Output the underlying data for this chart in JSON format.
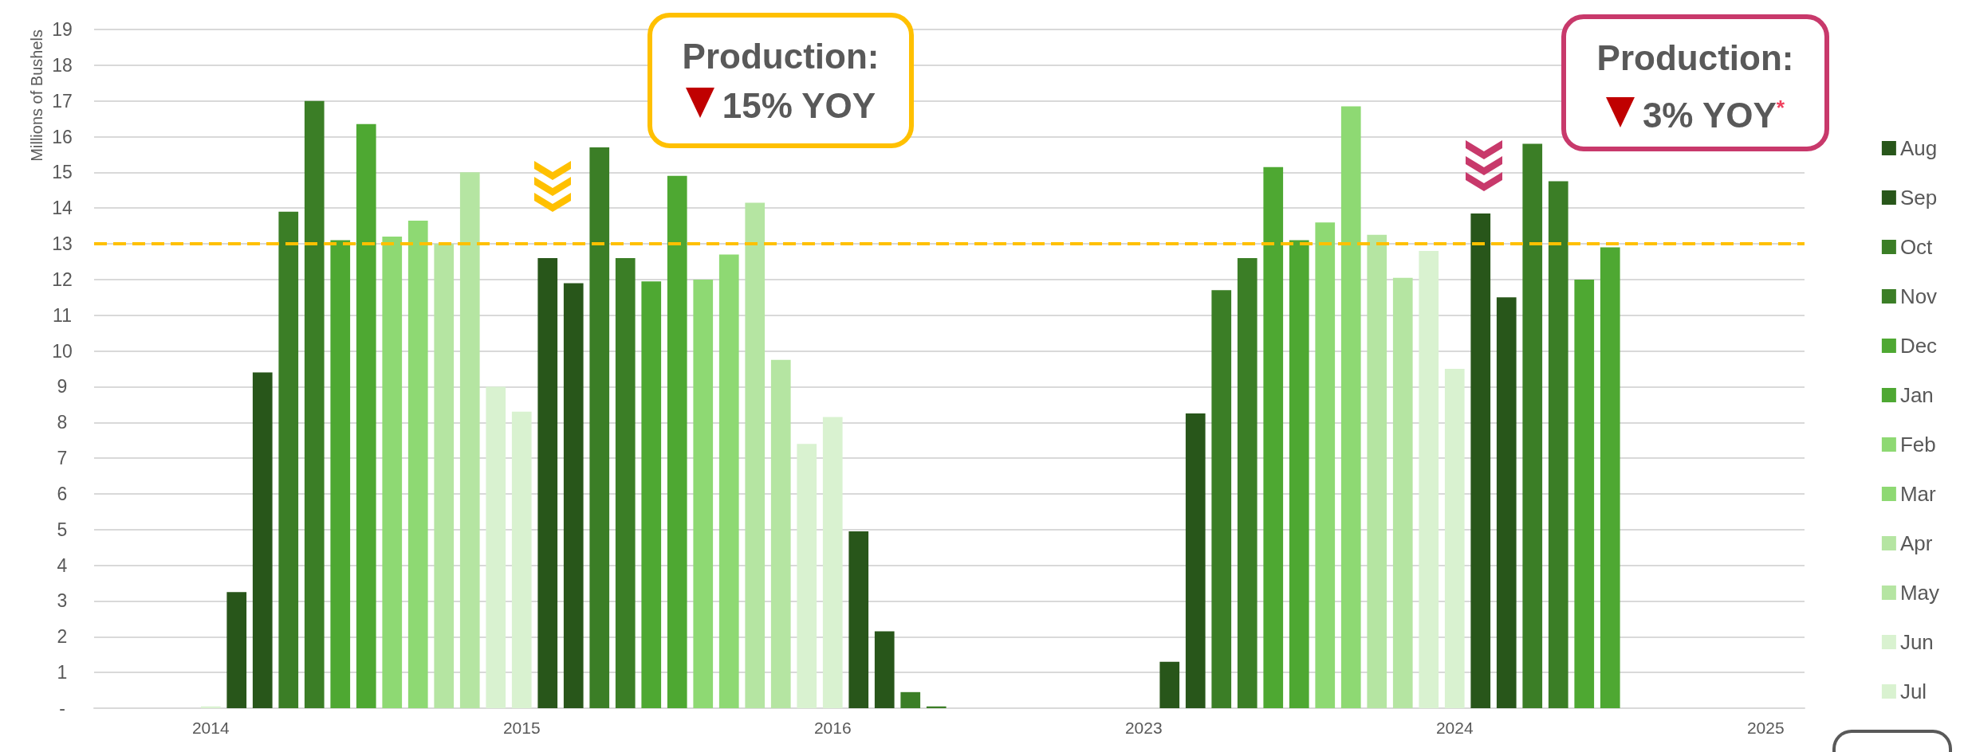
{
  "chart_data": {
    "type": "bar",
    "ylabel": "Millions of Bushels",
    "ylim": [
      0,
      19
    ],
    "yticks": [
      {
        "value": 0,
        "label": "-"
      },
      1,
      2,
      3,
      4,
      5,
      6,
      7,
      8,
      9,
      10,
      11,
      12,
      13,
      14,
      15,
      16,
      17,
      18,
      19
    ],
    "grid": "y",
    "legend": "right",
    "categories": [
      null,
      null,
      null,
      null,
      "2014",
      null,
      null,
      null,
      null,
      null,
      null,
      null,
      null,
      null,
      null,
      null,
      "2015",
      null,
      null,
      null,
      null,
      null,
      null,
      null,
      null,
      null,
      null,
      null,
      "2016",
      null,
      null,
      null,
      null,
      null,
      null,
      null,
      null,
      null,
      null,
      null,
      "2023",
      null,
      null,
      null,
      null,
      null,
      null,
      null,
      null,
      null,
      null,
      null,
      "2024",
      null,
      null,
      null,
      null,
      null,
      null,
      null,
      null,
      null,
      null,
      null,
      "2025",
      null
    ],
    "series": [
      {
        "name": "Aug",
        "color": "#28561a",
        "values": [
          null,
          null,
          null,
          null,
          null,
          3.25,
          null,
          null,
          null,
          null,
          null,
          null,
          null,
          null,
          null,
          null,
          null,
          12.6,
          null,
          null,
          null,
          null,
          null,
          null,
          null,
          null,
          null,
          null,
          null,
          4.95,
          null,
          null,
          null,
          null,
          null,
          null,
          null,
          null,
          null,
          null,
          null,
          1.3,
          null,
          null,
          null,
          null,
          null,
          null,
          null,
          null,
          null,
          null,
          null,
          13.85,
          null,
          null,
          null,
          null,
          null,
          null,
          null,
          null,
          null,
          null,
          null,
          null
        ]
      },
      {
        "name": "Sep",
        "color": "#28561a",
        "values": [
          null,
          null,
          null,
          null,
          null,
          null,
          9.4,
          null,
          null,
          null,
          null,
          null,
          null,
          null,
          null,
          null,
          null,
          null,
          11.9,
          null,
          null,
          null,
          null,
          null,
          null,
          null,
          null,
          null,
          null,
          null,
          2.15,
          null,
          null,
          null,
          null,
          null,
          null,
          null,
          null,
          null,
          null,
          null,
          8.25,
          null,
          null,
          null,
          null,
          null,
          null,
          null,
          null,
          null,
          null,
          null,
          11.5,
          null,
          null,
          null,
          null,
          null,
          null,
          null,
          null,
          null,
          null,
          null
        ]
      },
      {
        "name": "Oct",
        "color": "#3b7e26",
        "values": [
          null,
          null,
          null,
          null,
          null,
          null,
          null,
          13.9,
          null,
          null,
          null,
          null,
          null,
          null,
          null,
          null,
          null,
          null,
          null,
          15.7,
          null,
          null,
          null,
          null,
          null,
          null,
          null,
          null,
          null,
          null,
          null,
          0.45,
          null,
          null,
          null,
          null,
          null,
          null,
          null,
          null,
          null,
          null,
          null,
          11.7,
          null,
          null,
          null,
          null,
          null,
          null,
          null,
          null,
          null,
          null,
          null,
          15.8,
          null,
          null,
          null,
          null,
          null,
          null,
          null,
          null,
          null,
          null
        ]
      },
      {
        "name": "Nov",
        "color": "#3b7e26",
        "values": [
          null,
          null,
          null,
          null,
          null,
          null,
          null,
          null,
          17.0,
          null,
          null,
          null,
          null,
          null,
          null,
          null,
          null,
          null,
          null,
          null,
          12.6,
          null,
          null,
          null,
          null,
          null,
          null,
          null,
          null,
          null,
          null,
          null,
          0.05,
          null,
          null,
          null,
          null,
          null,
          null,
          null,
          null,
          null,
          null,
          null,
          12.6,
          null,
          null,
          null,
          null,
          null,
          null,
          null,
          null,
          null,
          null,
          null,
          14.75,
          null,
          null,
          null,
          null,
          null,
          null,
          null,
          null,
          null
        ]
      },
      {
        "name": "Dec",
        "color": "#4ea832",
        "values": [
          null,
          null,
          null,
          null,
          null,
          null,
          null,
          null,
          null,
          13.1,
          null,
          null,
          null,
          null,
          null,
          null,
          null,
          null,
          null,
          null,
          null,
          11.95,
          null,
          null,
          null,
          null,
          null,
          null,
          null,
          null,
          null,
          null,
          null,
          null,
          null,
          null,
          null,
          null,
          null,
          null,
          null,
          null,
          null,
          null,
          null,
          15.15,
          null,
          null,
          null,
          null,
          null,
          null,
          null,
          null,
          null,
          null,
          null,
          12.0,
          null,
          null,
          null,
          null,
          null,
          null,
          null,
          null
        ]
      },
      {
        "name": "Jan",
        "color": "#4ea832",
        "values": [
          null,
          null,
          null,
          null,
          null,
          null,
          null,
          null,
          null,
          null,
          16.35,
          null,
          null,
          null,
          null,
          null,
          null,
          null,
          null,
          null,
          null,
          null,
          14.9,
          null,
          null,
          null,
          null,
          null,
          null,
          null,
          null,
          null,
          null,
          null,
          null,
          null,
          null,
          null,
          null,
          null,
          null,
          null,
          null,
          null,
          null,
          null,
          13.1,
          null,
          null,
          null,
          null,
          null,
          null,
          null,
          null,
          null,
          null,
          null,
          12.9,
          null,
          null,
          null,
          null,
          null,
          null,
          null
        ]
      },
      {
        "name": "Feb",
        "color": "#8ed973",
        "values": [
          null,
          null,
          null,
          null,
          null,
          null,
          null,
          null,
          null,
          null,
          null,
          13.2,
          null,
          null,
          null,
          null,
          null,
          null,
          null,
          null,
          null,
          null,
          null,
          12.0,
          null,
          null,
          null,
          null,
          null,
          null,
          null,
          null,
          null,
          null,
          null,
          null,
          null,
          null,
          null,
          null,
          null,
          null,
          null,
          null,
          null,
          null,
          null,
          13.6,
          null,
          null,
          null,
          null,
          null,
          null,
          null,
          null,
          null,
          null,
          null,
          null,
          null,
          null,
          null,
          null,
          null,
          null
        ]
      },
      {
        "name": "Mar",
        "color": "#8ed973",
        "values": [
          null,
          null,
          null,
          null,
          null,
          null,
          null,
          null,
          null,
          null,
          null,
          null,
          13.65,
          null,
          null,
          null,
          null,
          null,
          null,
          null,
          null,
          null,
          null,
          null,
          12.7,
          null,
          null,
          null,
          null,
          null,
          null,
          null,
          null,
          null,
          null,
          null,
          null,
          null,
          null,
          null,
          null,
          null,
          null,
          null,
          null,
          null,
          null,
          null,
          16.85,
          null,
          null,
          null,
          null,
          null,
          null,
          null,
          null,
          null,
          null,
          null,
          null,
          null,
          null,
          null,
          null,
          null
        ]
      },
      {
        "name": "Apr",
        "color": "#b5e5a2",
        "values": [
          null,
          null,
          null,
          null,
          null,
          null,
          null,
          null,
          null,
          null,
          null,
          null,
          null,
          13.0,
          null,
          null,
          null,
          null,
          null,
          null,
          null,
          null,
          null,
          null,
          null,
          14.15,
          null,
          null,
          null,
          null,
          null,
          null,
          null,
          null,
          null,
          null,
          null,
          null,
          null,
          null,
          null,
          null,
          null,
          null,
          null,
          null,
          null,
          null,
          null,
          13.25,
          null,
          null,
          null,
          null,
          null,
          null,
          null,
          null,
          null,
          null,
          null,
          null,
          null,
          null,
          null,
          null
        ]
      },
      {
        "name": "May",
        "color": "#b5e5a2",
        "values": [
          null,
          null,
          null,
          null,
          null,
          null,
          null,
          null,
          null,
          null,
          null,
          null,
          null,
          null,
          15.0,
          null,
          null,
          null,
          null,
          null,
          null,
          null,
          null,
          null,
          null,
          null,
          9.75,
          null,
          null,
          null,
          null,
          null,
          null,
          null,
          null,
          null,
          null,
          null,
          null,
          null,
          null,
          null,
          null,
          null,
          null,
          null,
          null,
          null,
          null,
          null,
          12.05,
          null,
          null,
          null,
          null,
          null,
          null,
          null,
          null,
          null,
          null,
          null,
          null,
          null,
          null,
          null
        ]
      },
      {
        "name": "Jun",
        "color": "#d9f2d0",
        "values": [
          null,
          null,
          null,
          null,
          null,
          null,
          null,
          null,
          null,
          null,
          null,
          null,
          null,
          null,
          null,
          9.0,
          null,
          null,
          null,
          null,
          null,
          null,
          null,
          null,
          null,
          null,
          null,
          7.4,
          null,
          null,
          null,
          null,
          null,
          null,
          null,
          null,
          null,
          null,
          null,
          null,
          null,
          null,
          null,
          null,
          null,
          null,
          null,
          null,
          null,
          null,
          null,
          12.8,
          null,
          null,
          null,
          null,
          null,
          null,
          null,
          null,
          null,
          null,
          null,
          null,
          null,
          null
        ]
      },
      {
        "name": "Jul",
        "color": "#d9f2d0",
        "values": [
          null,
          null,
          null,
          null,
          0.05,
          null,
          null,
          null,
          null,
          null,
          null,
          null,
          null,
          null,
          null,
          null,
          8.3,
          null,
          null,
          null,
          null,
          null,
          null,
          null,
          null,
          null,
          null,
          null,
          8.15,
          null,
          null,
          null,
          null,
          null,
          null,
          null,
          null,
          null,
          null,
          null,
          null,
          null,
          null,
          null,
          null,
          null,
          null,
          null,
          null,
          null,
          null,
          null,
          9.5,
          null,
          null,
          null,
          null,
          null,
          null,
          null,
          null,
          null,
          null,
          null,
          null,
          null
        ]
      }
    ],
    "ref_lines": [
      {
        "axis": "y",
        "value": 13,
        "label": null,
        "color": "#ffc000",
        "line_style": "dashed"
      }
    ],
    "annotations": [
      "Production: 15% YOY",
      "Production: 3% YOY$^{*}$"
    ]
  }
}
